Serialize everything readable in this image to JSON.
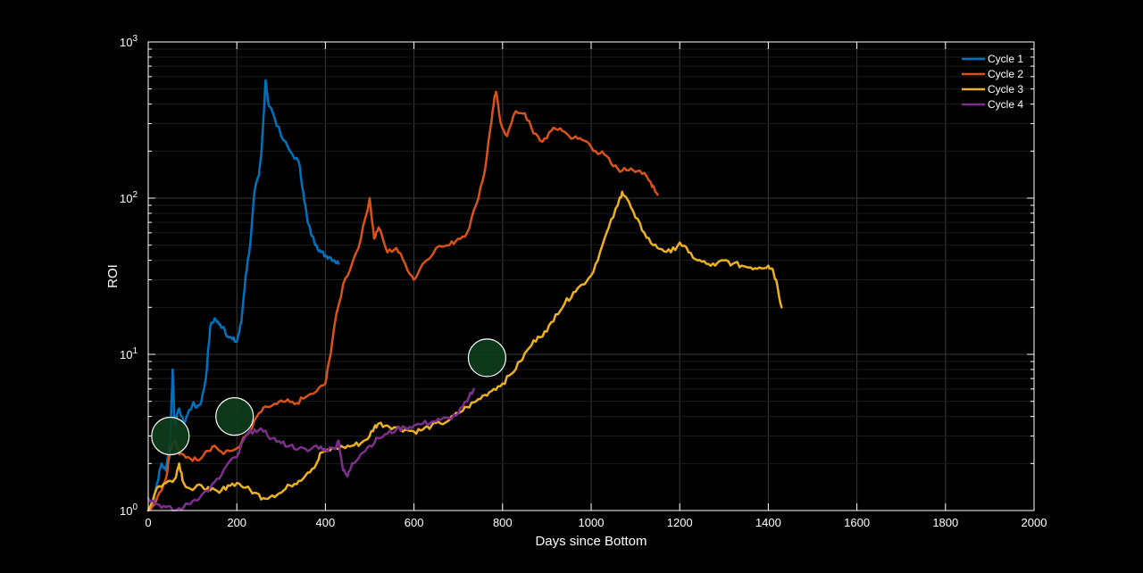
{
  "chart_data": {
    "type": "line",
    "xlabel": "Days since Bottom",
    "ylabel": "ROI",
    "xlim": [
      0,
      2000
    ],
    "ylim": [
      1,
      1000
    ],
    "yscale": "log",
    "grid": true,
    "legend_position": "top-right",
    "x_ticks": [
      "0",
      "200",
      "400",
      "600",
      "800",
      "1000",
      "1200",
      "1400",
      "1600",
      "1800",
      "2000"
    ],
    "y_ticks": [
      {
        "base": "10",
        "exp": "0"
      },
      {
        "base": "10",
        "exp": "1"
      },
      {
        "base": "10",
        "exp": "2"
      },
      {
        "base": "10",
        "exp": "3"
      }
    ],
    "series": [
      {
        "name": "Cycle 1",
        "color": "#0072BD",
        "points": [
          [
            0,
            1.0
          ],
          [
            10,
            1.1
          ],
          [
            20,
            1.5
          ],
          [
            30,
            2.0
          ],
          [
            40,
            1.8
          ],
          [
            50,
            3.0
          ],
          [
            55,
            8.0
          ],
          [
            60,
            3.5
          ],
          [
            70,
            4.5
          ],
          [
            80,
            3.6
          ],
          [
            90,
            4.2
          ],
          [
            100,
            4.8
          ],
          [
            110,
            4.6
          ],
          [
            120,
            5.0
          ],
          [
            130,
            7.0
          ],
          [
            140,
            15
          ],
          [
            150,
            17
          ],
          [
            160,
            15.5
          ],
          [
            170,
            15
          ],
          [
            180,
            13
          ],
          [
            190,
            12.5
          ],
          [
            200,
            12
          ],
          [
            210,
            16
          ],
          [
            220,
            32
          ],
          [
            230,
            50
          ],
          [
            240,
            110
          ],
          [
            250,
            140
          ],
          [
            255,
            190
          ],
          [
            260,
            320
          ],
          [
            265,
            570
          ],
          [
            270,
            420
          ],
          [
            280,
            360
          ],
          [
            300,
            250
          ],
          [
            320,
            200
          ],
          [
            340,
            170
          ],
          [
            350,
            110
          ],
          [
            360,
            70
          ],
          [
            370,
            57
          ],
          [
            380,
            50
          ],
          [
            390,
            45
          ],
          [
            400,
            43
          ],
          [
            410,
            42
          ],
          [
            420,
            40
          ],
          [
            430,
            38
          ]
        ]
      },
      {
        "name": "Cycle 2",
        "color": "#D95319",
        "points": [
          [
            0,
            1.0
          ],
          [
            20,
            1.2
          ],
          [
            40,
            1.6
          ],
          [
            50,
            2.5
          ],
          [
            60,
            2.8
          ],
          [
            70,
            2.3
          ],
          [
            90,
            2.2
          ],
          [
            110,
            2.1
          ],
          [
            130,
            2.4
          ],
          [
            150,
            2.6
          ],
          [
            170,
            2.3
          ],
          [
            200,
            2.5
          ],
          [
            230,
            3.2
          ],
          [
            250,
            4.2
          ],
          [
            270,
            4.6
          ],
          [
            290,
            4.8
          ],
          [
            310,
            5.0
          ],
          [
            330,
            4.8
          ],
          [
            350,
            5.2
          ],
          [
            380,
            5.8
          ],
          [
            400,
            6.5
          ],
          [
            410,
            9.5
          ],
          [
            420,
            15
          ],
          [
            440,
            28
          ],
          [
            460,
            38
          ],
          [
            480,
            55
          ],
          [
            500,
            100
          ],
          [
            510,
            55
          ],
          [
            520,
            65
          ],
          [
            540,
            45
          ],
          [
            560,
            48
          ],
          [
            580,
            38
          ],
          [
            600,
            30
          ],
          [
            620,
            38
          ],
          [
            650,
            48
          ],
          [
            680,
            50
          ],
          [
            700,
            55
          ],
          [
            720,
            60
          ],
          [
            740,
            90
          ],
          [
            760,
            150
          ],
          [
            770,
            250
          ],
          [
            780,
            400
          ],
          [
            785,
            480
          ],
          [
            795,
            310
          ],
          [
            810,
            250
          ],
          [
            830,
            360
          ],
          [
            850,
            350
          ],
          [
            870,
            260
          ],
          [
            890,
            230
          ],
          [
            910,
            270
          ],
          [
            930,
            280
          ],
          [
            950,
            250
          ],
          [
            970,
            240
          ],
          [
            990,
            230
          ],
          [
            1010,
            200
          ],
          [
            1030,
            190
          ],
          [
            1050,
            160
          ],
          [
            1070,
            150
          ],
          [
            1090,
            155
          ],
          [
            1110,
            150
          ],
          [
            1130,
            130
          ],
          [
            1140,
            120
          ],
          [
            1150,
            105
          ]
        ]
      },
      {
        "name": "Cycle 3",
        "color": "#EDB120",
        "points": [
          [
            0,
            1.0
          ],
          [
            20,
            1.4
          ],
          [
            40,
            1.5
          ],
          [
            60,
            1.6
          ],
          [
            70,
            2.0
          ],
          [
            80,
            1.5
          ],
          [
            100,
            1.35
          ],
          [
            120,
            1.45
          ],
          [
            140,
            1.35
          ],
          [
            160,
            1.3
          ],
          [
            180,
            1.45
          ],
          [
            200,
            1.5
          ],
          [
            220,
            1.4
          ],
          [
            240,
            1.3
          ],
          [
            260,
            1.2
          ],
          [
            280,
            1.25
          ],
          [
            300,
            1.3
          ],
          [
            320,
            1.45
          ],
          [
            340,
            1.55
          ],
          [
            360,
            1.75
          ],
          [
            380,
            2.0
          ],
          [
            390,
            2.35
          ],
          [
            400,
            2.4
          ],
          [
            420,
            2.5
          ],
          [
            440,
            2.55
          ],
          [
            460,
            2.6
          ],
          [
            480,
            2.7
          ],
          [
            500,
            3.0
          ],
          [
            510,
            3.4
          ],
          [
            520,
            3.6
          ],
          [
            540,
            3.5
          ],
          [
            560,
            3.4
          ],
          [
            580,
            3.3
          ],
          [
            600,
            3.2
          ],
          [
            620,
            3.3
          ],
          [
            640,
            3.5
          ],
          [
            660,
            3.6
          ],
          [
            680,
            3.8
          ],
          [
            700,
            4.2
          ],
          [
            720,
            4.6
          ],
          [
            740,
            5.0
          ],
          [
            760,
            5.5
          ],
          [
            780,
            6.0
          ],
          [
            800,
            6.5
          ],
          [
            820,
            7.5
          ],
          [
            840,
            9.0
          ],
          [
            860,
            11
          ],
          [
            880,
            13
          ],
          [
            900,
            14
          ],
          [
            920,
            18
          ],
          [
            940,
            21
          ],
          [
            960,
            25
          ],
          [
            980,
            28
          ],
          [
            1000,
            32
          ],
          [
            1020,
            45
          ],
          [
            1040,
            65
          ],
          [
            1060,
            90
          ],
          [
            1070,
            110
          ],
          [
            1080,
            100
          ],
          [
            1100,
            75
          ],
          [
            1120,
            60
          ],
          [
            1140,
            50
          ],
          [
            1160,
            47
          ],
          [
            1180,
            45
          ],
          [
            1200,
            52
          ],
          [
            1220,
            45
          ],
          [
            1240,
            40
          ],
          [
            1260,
            38
          ],
          [
            1280,
            37
          ],
          [
            1300,
            40
          ],
          [
            1320,
            38
          ],
          [
            1340,
            37
          ],
          [
            1360,
            36
          ],
          [
            1380,
            36
          ],
          [
            1400,
            37
          ],
          [
            1410,
            35
          ],
          [
            1420,
            28
          ],
          [
            1430,
            20
          ]
        ]
      },
      {
        "name": "Cycle 4",
        "color": "#7E2F8E",
        "points": [
          [
            0,
            1.2
          ],
          [
            20,
            1.1
          ],
          [
            40,
            1.05
          ],
          [
            60,
            1.0
          ],
          [
            80,
            1.05
          ],
          [
            100,
            1.15
          ],
          [
            120,
            1.25
          ],
          [
            140,
            1.4
          ],
          [
            160,
            1.6
          ],
          [
            180,
            2.0
          ],
          [
            200,
            2.2
          ],
          [
            220,
            3.0
          ],
          [
            240,
            3.3
          ],
          [
            260,
            3.2
          ],
          [
            280,
            2.9
          ],
          [
            300,
            2.7
          ],
          [
            320,
            2.6
          ],
          [
            340,
            2.5
          ],
          [
            360,
            2.4
          ],
          [
            380,
            2.6
          ],
          [
            400,
            2.45
          ],
          [
            420,
            2.5
          ],
          [
            430,
            2.8
          ],
          [
            440,
            1.8
          ],
          [
            450,
            1.65
          ],
          [
            460,
            2.0
          ],
          [
            480,
            2.3
          ],
          [
            500,
            2.6
          ],
          [
            520,
            2.9
          ],
          [
            540,
            3.1
          ],
          [
            560,
            3.3
          ],
          [
            580,
            3.4
          ],
          [
            600,
            3.5
          ],
          [
            620,
            3.6
          ],
          [
            640,
            3.7
          ],
          [
            660,
            3.8
          ],
          [
            680,
            3.9
          ],
          [
            700,
            4.2
          ],
          [
            720,
            5.0
          ],
          [
            735,
            6.0
          ]
        ]
      }
    ],
    "markers": [
      {
        "x": 50,
        "y": 3.0
      },
      {
        "x": 195,
        "y": 4.0
      },
      {
        "x": 765,
        "y": 9.5
      }
    ]
  }
}
